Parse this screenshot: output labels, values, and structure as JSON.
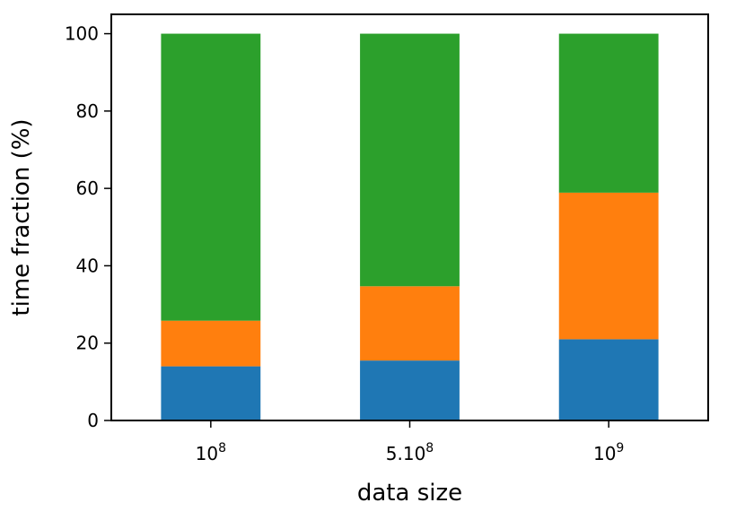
{
  "chart_data": {
    "type": "bar",
    "stacked": true,
    "categories": [
      {
        "base": "10",
        "exp": "8"
      },
      {
        "base": "5.10",
        "exp": "8"
      },
      {
        "base": "10",
        "exp": "9"
      }
    ],
    "series": [
      {
        "values": [
          14,
          15.5,
          21
        ],
        "color": "#1f77b4"
      },
      {
        "values": [
          11.8,
          19.2,
          37.9
        ],
        "color": "#ff7f0e"
      },
      {
        "values": [
          74.2,
          65.3,
          41.1
        ],
        "color": "#2ca02c"
      }
    ],
    "xlabel": "data size",
    "ylabel": "time fraction (%)",
    "ylim": [
      0,
      105
    ],
    "yticks": [
      "0",
      "20",
      "40",
      "60",
      "80",
      "100"
    ],
    "grid": false
  }
}
